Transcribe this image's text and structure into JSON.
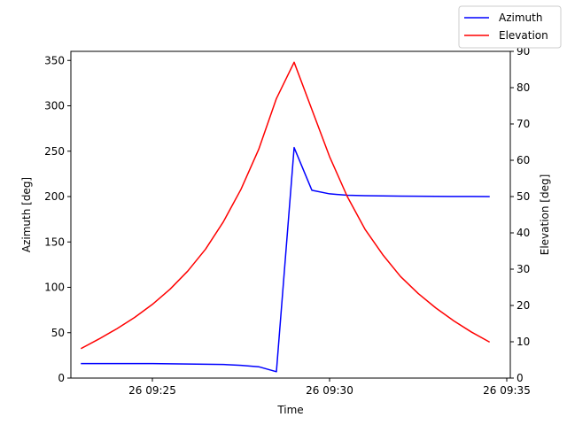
{
  "chart_data": {
    "type": "line",
    "xlabel": "Time",
    "ylabel_left": "Azimuth [deg]",
    "ylabel_right": "Elevation [deg]",
    "x_ticks": [
      "26 09:25",
      "26 09:30",
      "26 09:35"
    ],
    "x_tick_minutes": [
      25,
      30,
      35
    ],
    "xlim_minutes": [
      22.7,
      35.1
    ],
    "ylim_left": [
      0,
      360
    ],
    "yticks_left": [
      0,
      50,
      100,
      150,
      200,
      250,
      300,
      350
    ],
    "ylim_right": [
      0,
      90
    ],
    "yticks_right": [
      0,
      10,
      20,
      30,
      40,
      50,
      60,
      70,
      80,
      90
    ],
    "grid": false,
    "legend_position": "top-right",
    "series": [
      {
        "name": "Azimuth",
        "axis": "left",
        "color": "#0000ff",
        "x_minutes": [
          23.0,
          24.0,
          25.0,
          26.0,
          26.5,
          27.0,
          27.5,
          28.0,
          28.5,
          29.0,
          29.5,
          30.0,
          30.5,
          31.0,
          32.0,
          33.0,
          34.0,
          34.5
        ],
        "values": [
          16,
          16,
          16,
          15.5,
          15.3,
          15,
          14,
          12.5,
          7,
          254,
          207,
          203,
          201.5,
          201,
          200.5,
          200.2,
          200.1,
          200
        ]
      },
      {
        "name": "Elevation",
        "axis": "right",
        "color": "#ff0000",
        "x_minutes": [
          23.0,
          23.5,
          24.0,
          24.5,
          25.0,
          25.5,
          26.0,
          26.5,
          27.0,
          27.5,
          28.0,
          28.5,
          29.0,
          29.5,
          30.0,
          30.5,
          31.0,
          31.5,
          32.0,
          32.5,
          33.0,
          33.5,
          34.0,
          34.5
        ],
        "values": [
          8.2,
          10.8,
          13.6,
          16.7,
          20.3,
          24.5,
          29.5,
          35.5,
          43,
          52,
          63,
          77,
          87,
          74,
          61,
          50,
          41,
          34,
          28,
          23.3,
          19.3,
          15.8,
          12.7,
          10
        ]
      }
    ]
  }
}
